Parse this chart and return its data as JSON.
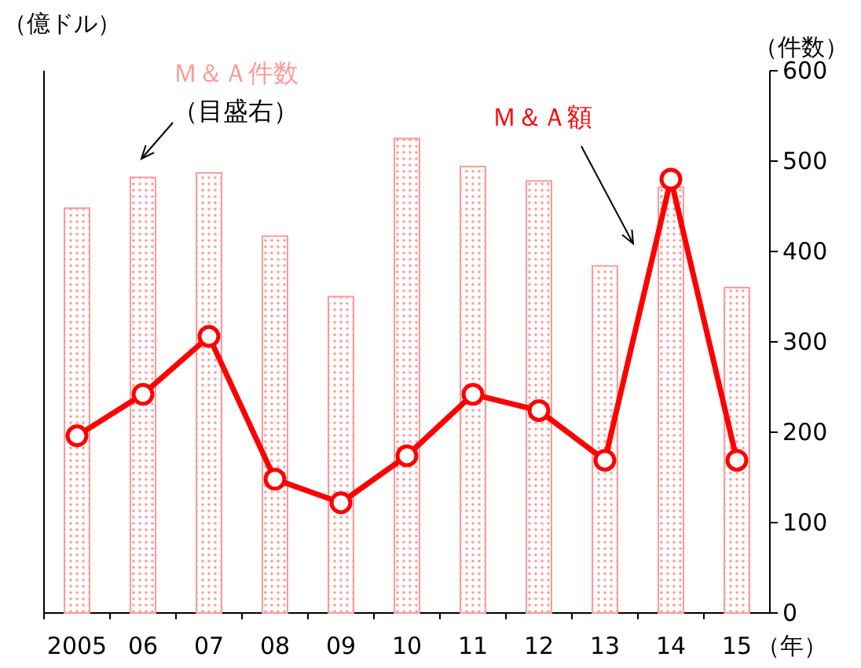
{
  "chart_data": {
    "type": "bar",
    "categories": [
      "2005",
      "06",
      "07",
      "08",
      "09",
      "10",
      "11",
      "12",
      "13",
      "14",
      "15"
    ],
    "xlabel": "（年）",
    "ylabel": "（億ドル）",
    "y2label": "（件数）",
    "series": [
      {
        "name": "Ｍ＆Ａ件数",
        "axis": "y2",
        "color": "#ff9999",
        "values": [
          448,
          482,
          487,
          417,
          350,
          525,
          494,
          478,
          384,
          471,
          360
        ]
      },
      {
        "name": "Ｍ＆Ａ額",
        "type": "line",
        "axis": "y2",
        "color": "#ff0000",
        "marker": "circle",
        "values": [
          196,
          242,
          306,
          148,
          122,
          174,
          242,
          224,
          169,
          480,
          169
        ]
      }
    ],
    "y2lim": [
      0,
      600
    ],
    "y2ticks": [
      0,
      100,
      200,
      300,
      400,
      500,
      600
    ],
    "annotations": [
      "（目盛右）"
    ],
    "legend": false,
    "grid": false
  }
}
